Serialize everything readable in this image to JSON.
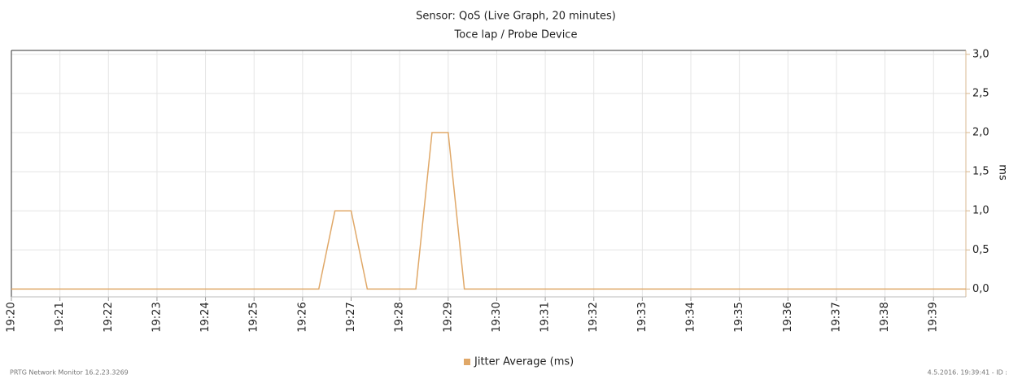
{
  "chart_data": {
    "type": "line",
    "title": "Sensor: QoS (Live Graph, 20 minutes)",
    "subtitle": "Toce lap / Probe Device",
    "y_axis_label": "ms",
    "x": [
      "19:20",
      "19:26:20",
      "19:26:40",
      "19:27:00",
      "19:27:20",
      "19:28:20",
      "19:28:40",
      "19:29:00",
      "19:29:20",
      "19:39:40"
    ],
    "series": [
      {
        "name": "Jitter Average (ms)",
        "color": "#e0a868",
        "values": [
          0,
          0,
          1,
          1,
          0,
          0,
          2,
          2,
          0,
          0
        ]
      }
    ],
    "xlim": [
      "19:20",
      "19:39:40"
    ],
    "xticks": [
      "19:20",
      "19:21",
      "19:22",
      "19:23",
      "19:24",
      "19:25",
      "19:26",
      "19:27",
      "19:28",
      "19:29",
      "19:30",
      "19:31",
      "19:32",
      "19:33",
      "19:34",
      "19:35",
      "19:36",
      "19:37",
      "19:38",
      "19:39"
    ],
    "ylim": [
      -0.1,
      3.05
    ],
    "yticks": [
      {
        "value": 0,
        "label": "0,0"
      },
      {
        "value": 0.5,
        "label": "0,5"
      },
      {
        "value": 1,
        "label": "1,0"
      },
      {
        "value": 1.5,
        "label": "1,5"
      },
      {
        "value": 2,
        "label": "2,0"
      },
      {
        "value": 2.5,
        "label": "2,5"
      },
      {
        "value": 3,
        "label": "3,0"
      }
    ],
    "grid": true,
    "legend": "bottom",
    "footer_left": "PRTG Network Monitor 16.2.23.3269",
    "footer_right": "4.5.2016. 19:39:41 - ID :"
  }
}
